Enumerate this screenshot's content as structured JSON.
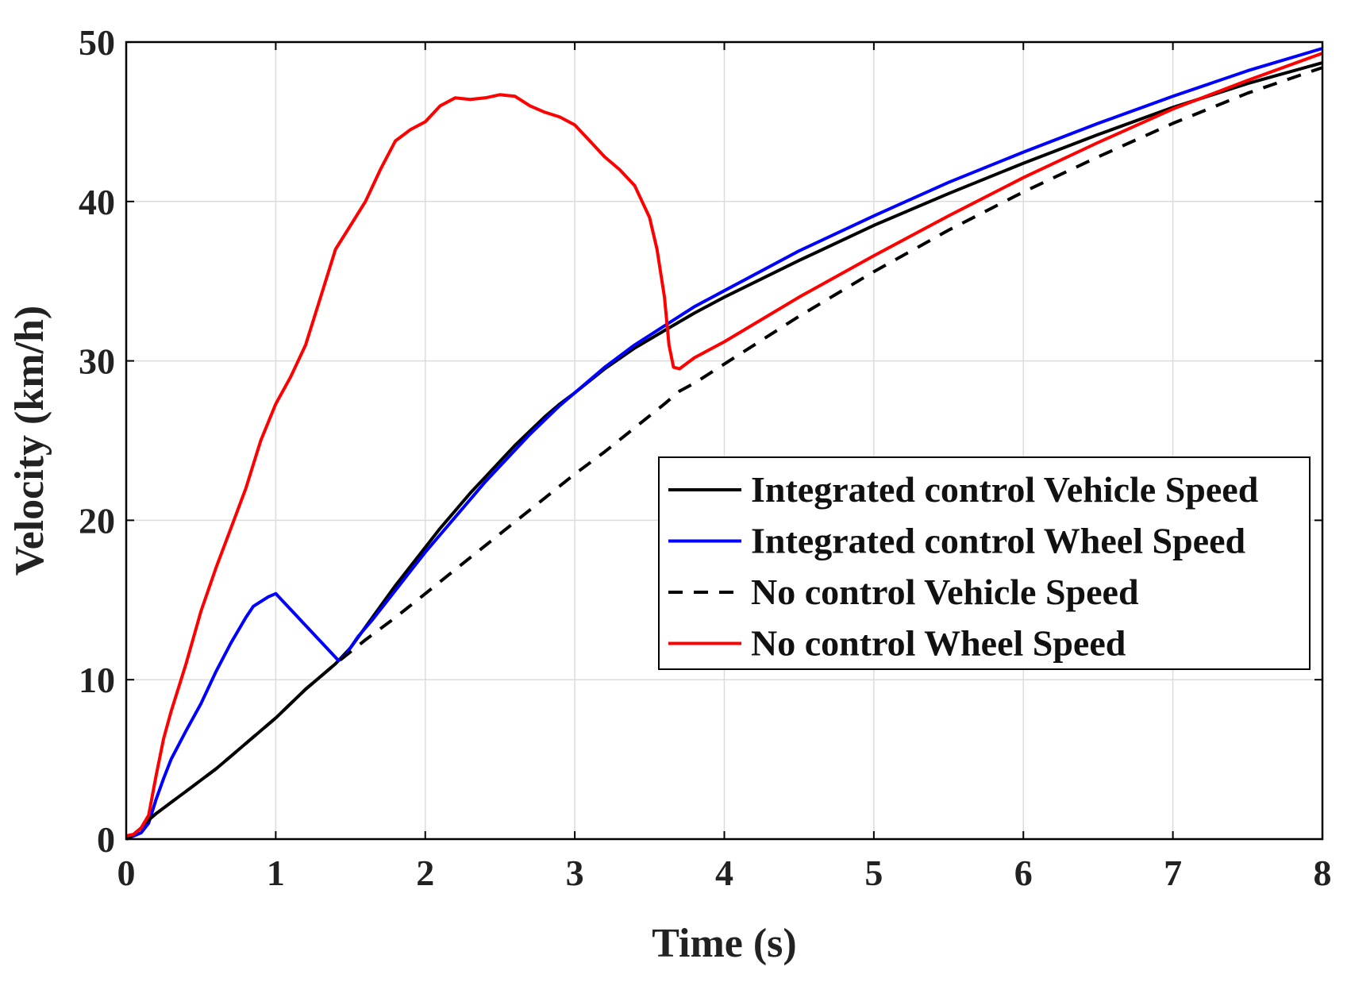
{
  "chart_data": {
    "type": "line",
    "title": "",
    "xlabel": "Time (s)",
    "ylabel": "Velocity (km/h)",
    "xlim": [
      0,
      8
    ],
    "ylim": [
      0,
      50
    ],
    "xticks": [
      0,
      1,
      2,
      3,
      4,
      5,
      6,
      7,
      8
    ],
    "yticks": [
      0,
      10,
      20,
      30,
      40,
      50
    ],
    "xtick_labels": [
      "0",
      "1",
      "2",
      "3",
      "4",
      "5",
      "6",
      "7",
      "8"
    ],
    "ytick_labels": [
      "0",
      "10",
      "20",
      "30",
      "40",
      "50"
    ],
    "grid": true,
    "legend_position": "center-right",
    "series": [
      {
        "name": "Integrated control Vehicle Speed",
        "color": "#000000",
        "style": "solid",
        "points": [
          [
            0,
            0
          ],
          [
            0.05,
            0.3
          ],
          [
            0.1,
            0.7
          ],
          [
            0.15,
            1.2
          ],
          [
            0.2,
            1.6
          ],
          [
            0.3,
            2.3
          ],
          [
            0.4,
            3.0
          ],
          [
            0.5,
            3.7
          ],
          [
            0.6,
            4.4
          ],
          [
            0.7,
            5.2
          ],
          [
            0.8,
            6.0
          ],
          [
            0.9,
            6.8
          ],
          [
            1.0,
            7.6
          ],
          [
            1.1,
            8.5
          ],
          [
            1.2,
            9.4
          ],
          [
            1.3,
            10.2
          ],
          [
            1.4,
            11.0
          ],
          [
            1.5,
            12.0
          ],
          [
            1.6,
            13.3
          ],
          [
            1.7,
            14.6
          ],
          [
            1.8,
            15.9
          ],
          [
            1.9,
            17.1
          ],
          [
            2.0,
            18.3
          ],
          [
            2.1,
            19.5
          ],
          [
            2.2,
            20.6
          ],
          [
            2.3,
            21.7
          ],
          [
            2.4,
            22.7
          ],
          [
            2.5,
            23.7
          ],
          [
            2.6,
            24.7
          ],
          [
            2.7,
            25.6
          ],
          [
            2.8,
            26.5
          ],
          [
            2.9,
            27.3
          ],
          [
            3.0,
            28.0
          ],
          [
            3.2,
            29.5
          ],
          [
            3.4,
            30.8
          ],
          [
            3.6,
            31.9
          ],
          [
            3.8,
            33.0
          ],
          [
            4.0,
            34.0
          ],
          [
            4.5,
            36.3
          ],
          [
            5.0,
            38.5
          ],
          [
            5.5,
            40.5
          ],
          [
            6.0,
            42.4
          ],
          [
            6.5,
            44.2
          ],
          [
            7.0,
            45.9
          ],
          [
            7.5,
            47.4
          ],
          [
            8.0,
            48.7
          ]
        ]
      },
      {
        "name": "Integrated control Wheel Speed",
        "color": "#0000ff",
        "style": "solid",
        "points": [
          [
            0,
            0
          ],
          [
            0.1,
            0.4
          ],
          [
            0.15,
            1.0
          ],
          [
            0.2,
            2.5
          ],
          [
            0.25,
            3.8
          ],
          [
            0.3,
            5.0
          ],
          [
            0.4,
            6.8
          ],
          [
            0.5,
            8.5
          ],
          [
            0.6,
            10.5
          ],
          [
            0.7,
            12.3
          ],
          [
            0.8,
            13.9
          ],
          [
            0.85,
            14.6
          ],
          [
            0.9,
            14.9
          ],
          [
            0.95,
            15.2
          ],
          [
            1.0,
            15.4
          ],
          [
            1.1,
            14.4
          ],
          [
            1.2,
            13.4
          ],
          [
            1.3,
            12.4
          ],
          [
            1.42,
            11.2
          ],
          [
            1.47,
            11.6
          ],
          [
            1.55,
            12.7
          ],
          [
            1.65,
            13.8
          ],
          [
            1.8,
            15.6
          ],
          [
            1.9,
            16.8
          ],
          [
            2.0,
            18.0
          ],
          [
            2.1,
            19.1
          ],
          [
            2.2,
            20.2
          ],
          [
            2.3,
            21.3
          ],
          [
            2.4,
            22.4
          ],
          [
            2.5,
            23.4
          ],
          [
            2.6,
            24.4
          ],
          [
            2.7,
            25.4
          ],
          [
            2.8,
            26.3
          ],
          [
            2.9,
            27.2
          ],
          [
            3.0,
            28.0
          ],
          [
            3.2,
            29.6
          ],
          [
            3.4,
            31.0
          ],
          [
            3.6,
            32.2
          ],
          [
            3.8,
            33.4
          ],
          [
            4.0,
            34.4
          ],
          [
            4.5,
            36.9
          ],
          [
            5.0,
            39.1
          ],
          [
            5.5,
            41.2
          ],
          [
            6.0,
            43.1
          ],
          [
            6.5,
            44.9
          ],
          [
            7.0,
            46.6
          ],
          [
            7.5,
            48.2
          ],
          [
            8.0,
            49.6
          ]
        ]
      },
      {
        "name": "No control Vehicle Speed",
        "color": "#000000",
        "style": "dashed",
        "points": [
          [
            0,
            0
          ],
          [
            0.05,
            0.3
          ],
          [
            0.1,
            0.7
          ],
          [
            0.15,
            1.2
          ],
          [
            0.2,
            1.6
          ],
          [
            0.3,
            2.3
          ],
          [
            0.4,
            3.0
          ],
          [
            0.5,
            3.7
          ],
          [
            0.6,
            4.4
          ],
          [
            0.7,
            5.2
          ],
          [
            0.8,
            6.0
          ],
          [
            0.9,
            6.8
          ],
          [
            1.0,
            7.6
          ],
          [
            1.1,
            8.5
          ],
          [
            1.2,
            9.4
          ],
          [
            1.3,
            10.2
          ],
          [
            1.4,
            11.0
          ],
          [
            1.6,
            12.5
          ],
          [
            1.8,
            13.9
          ],
          [
            2.0,
            15.4
          ],
          [
            2.2,
            16.9
          ],
          [
            2.4,
            18.4
          ],
          [
            2.6,
            19.9
          ],
          [
            2.8,
            21.4
          ],
          [
            3.0,
            22.9
          ],
          [
            3.2,
            24.3
          ],
          [
            3.4,
            25.8
          ],
          [
            3.6,
            27.3
          ],
          [
            3.7,
            28.1
          ],
          [
            3.8,
            28.6
          ],
          [
            4.0,
            29.8
          ],
          [
            4.5,
            32.8
          ],
          [
            5.0,
            35.6
          ],
          [
            5.5,
            38.2
          ],
          [
            6.0,
            40.6
          ],
          [
            6.5,
            42.8
          ],
          [
            7.0,
            44.9
          ],
          [
            7.5,
            46.8
          ],
          [
            8.0,
            48.4
          ]
        ]
      },
      {
        "name": "No control Wheel Speed",
        "color": "#ff0000",
        "style": "solid",
        "points": [
          [
            0,
            0.2
          ],
          [
            0.05,
            0.3
          ],
          [
            0.1,
            0.7
          ],
          [
            0.15,
            1.5
          ],
          [
            0.2,
            4.0
          ],
          [
            0.25,
            6.3
          ],
          [
            0.3,
            8.0
          ],
          [
            0.4,
            11.0
          ],
          [
            0.5,
            14.3
          ],
          [
            0.6,
            17.0
          ],
          [
            0.7,
            19.5
          ],
          [
            0.8,
            22.0
          ],
          [
            0.9,
            25.0
          ],
          [
            1.0,
            27.3
          ],
          [
            1.1,
            29.0
          ],
          [
            1.2,
            31.0
          ],
          [
            1.3,
            34.0
          ],
          [
            1.4,
            37.0
          ],
          [
            1.5,
            38.5
          ],
          [
            1.6,
            40.0
          ],
          [
            1.7,
            42.0
          ],
          [
            1.8,
            43.8
          ],
          [
            1.9,
            44.5
          ],
          [
            2.0,
            45.0
          ],
          [
            2.1,
            46.0
          ],
          [
            2.2,
            46.5
          ],
          [
            2.3,
            46.4
          ],
          [
            2.4,
            46.5
          ],
          [
            2.5,
            46.7
          ],
          [
            2.6,
            46.6
          ],
          [
            2.7,
            46.0
          ],
          [
            2.8,
            45.6
          ],
          [
            2.9,
            45.3
          ],
          [
            3.0,
            44.8
          ],
          [
            3.1,
            43.8
          ],
          [
            3.2,
            42.8
          ],
          [
            3.3,
            42.0
          ],
          [
            3.4,
            41.0
          ],
          [
            3.5,
            39.0
          ],
          [
            3.55,
            37.0
          ],
          [
            3.6,
            34.0
          ],
          [
            3.63,
            31.0
          ],
          [
            3.66,
            29.6
          ],
          [
            3.7,
            29.5
          ],
          [
            3.8,
            30.2
          ],
          [
            4.0,
            31.2
          ],
          [
            4.5,
            34.0
          ],
          [
            5.0,
            36.6
          ],
          [
            5.5,
            39.1
          ],
          [
            6.0,
            41.5
          ],
          [
            6.5,
            43.7
          ],
          [
            7.0,
            45.8
          ],
          [
            7.5,
            47.6
          ],
          [
            8.0,
            49.3
          ]
        ]
      }
    ]
  }
}
